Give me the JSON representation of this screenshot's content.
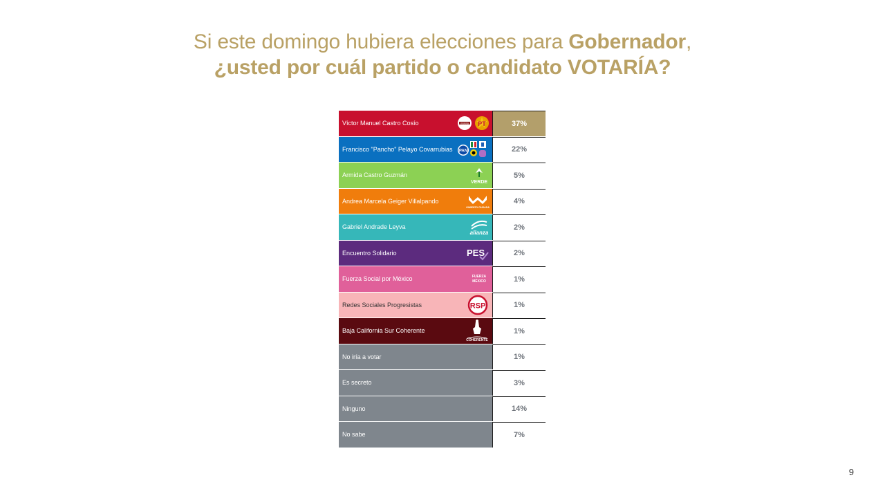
{
  "title": {
    "line1_pre": "Si este domingo hubiera elecciones para ",
    "line1_bold": "Gobernador",
    "line1_post": ",",
    "line2": "¿usted por cuál partido o candidato  VOTARÍA?"
  },
  "colors": {
    "title": "#b9a165",
    "highlight": "#b39f6b",
    "value_text": "#6f747b"
  },
  "chart_data": {
    "type": "table",
    "title": "Si este domingo hubiera elecciones para Gobernador, ¿usted por cuál partido o candidato  VOTARÍA?",
    "rows": [
      {
        "label": "Víctor Manuel Castro Cosío",
        "value": "37%",
        "color": "#c8102e",
        "logo": "morena-pt-logo"
      },
      {
        "label": "Francisco \"Pancho\" Pelayo Covarrubias",
        "value": "22%",
        "color": "#0a70c0",
        "logo": "pan-pri-prd-coalition-logo"
      },
      {
        "label": "Armida Castro Guzmán",
        "value": "5%",
        "color": "#8cd154",
        "logo": "verde-logo"
      },
      {
        "label": "Andrea Marcela Geiger Villalpando",
        "value": "4%",
        "color": "#f07d0c",
        "logo": "movimiento-ciudadano-logo"
      },
      {
        "label": "Gabriel Andrade Leyva",
        "value": "2%",
        "color": "#36b7b9",
        "logo": "nueva-alianza-logo"
      },
      {
        "label": "Encuentro Solidario",
        "value": "2%",
        "color": "#5c2b7e",
        "logo": "pes-logo"
      },
      {
        "label": "Fuerza Social por México",
        "value": "1%",
        "color": "#e0609a",
        "logo": "fuerza-por-mexico-logo"
      },
      {
        "label": "Redes Sociales Progresistas",
        "value": "1%",
        "color": "#f8b5b8",
        "logo": "rsp-logo"
      },
      {
        "label": "Baja California Sur Coherente",
        "value": "1%",
        "color": "#5a0a10",
        "logo": "bcs-coherente-logo"
      },
      {
        "label": "No iría a votar",
        "value": "1%",
        "color": "#7f868d",
        "logo": ""
      },
      {
        "label": "Es secreto",
        "value": "3%",
        "color": "#7f868d",
        "logo": ""
      },
      {
        "label": "Ninguno",
        "value": "14%",
        "color": "#7f868d",
        "logo": ""
      },
      {
        "label": "No sabe",
        "value": "7%",
        "color": "#7f868d",
        "logo": ""
      }
    ]
  },
  "logos": {
    "morena_text": "morena",
    "pt_text": "PT",
    "pan_text": "PAN",
    "verde_text": "VERDE",
    "mc_text": "MOVIMIENTO CIUDADANO",
    "alianza_text": "alianza",
    "pes_text": "PES",
    "fxm_line1": "FUERZA",
    "fxm_line2": "MÉXICO",
    "rsp_text": "RSP",
    "bcs_text": "COHERENTE"
  },
  "page_number": "9"
}
